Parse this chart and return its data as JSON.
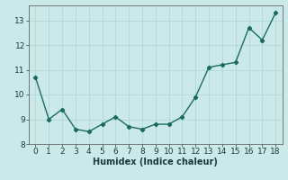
{
  "x": [
    0,
    1,
    2,
    3,
    4,
    5,
    6,
    7,
    8,
    9,
    10,
    11,
    12,
    13,
    14,
    15,
    16,
    17,
    18
  ],
  "y": [
    10.7,
    9.0,
    9.4,
    8.6,
    8.5,
    8.8,
    9.1,
    8.7,
    8.6,
    8.8,
    8.8,
    9.1,
    9.9,
    11.1,
    11.2,
    11.3,
    12.7,
    12.2,
    13.3
  ],
  "xlabel": "Humidex (Indice chaleur)",
  "xlim": [
    -0.5,
    18.5
  ],
  "ylim": [
    8.0,
    13.6
  ],
  "yticks": [
    8,
    9,
    10,
    11,
    12,
    13
  ],
  "xticks": [
    0,
    1,
    2,
    3,
    4,
    5,
    6,
    7,
    8,
    9,
    10,
    11,
    12,
    13,
    14,
    15,
    16,
    17,
    18
  ],
  "line_color": "#1a6b5e",
  "marker": "D",
  "marker_size": 2.2,
  "bg_color": "#cce9e9",
  "grid_color": "#b0d8d8",
  "line_width": 1.0,
  "xlabel_fontsize": 7,
  "tick_fontsize": 6.5
}
